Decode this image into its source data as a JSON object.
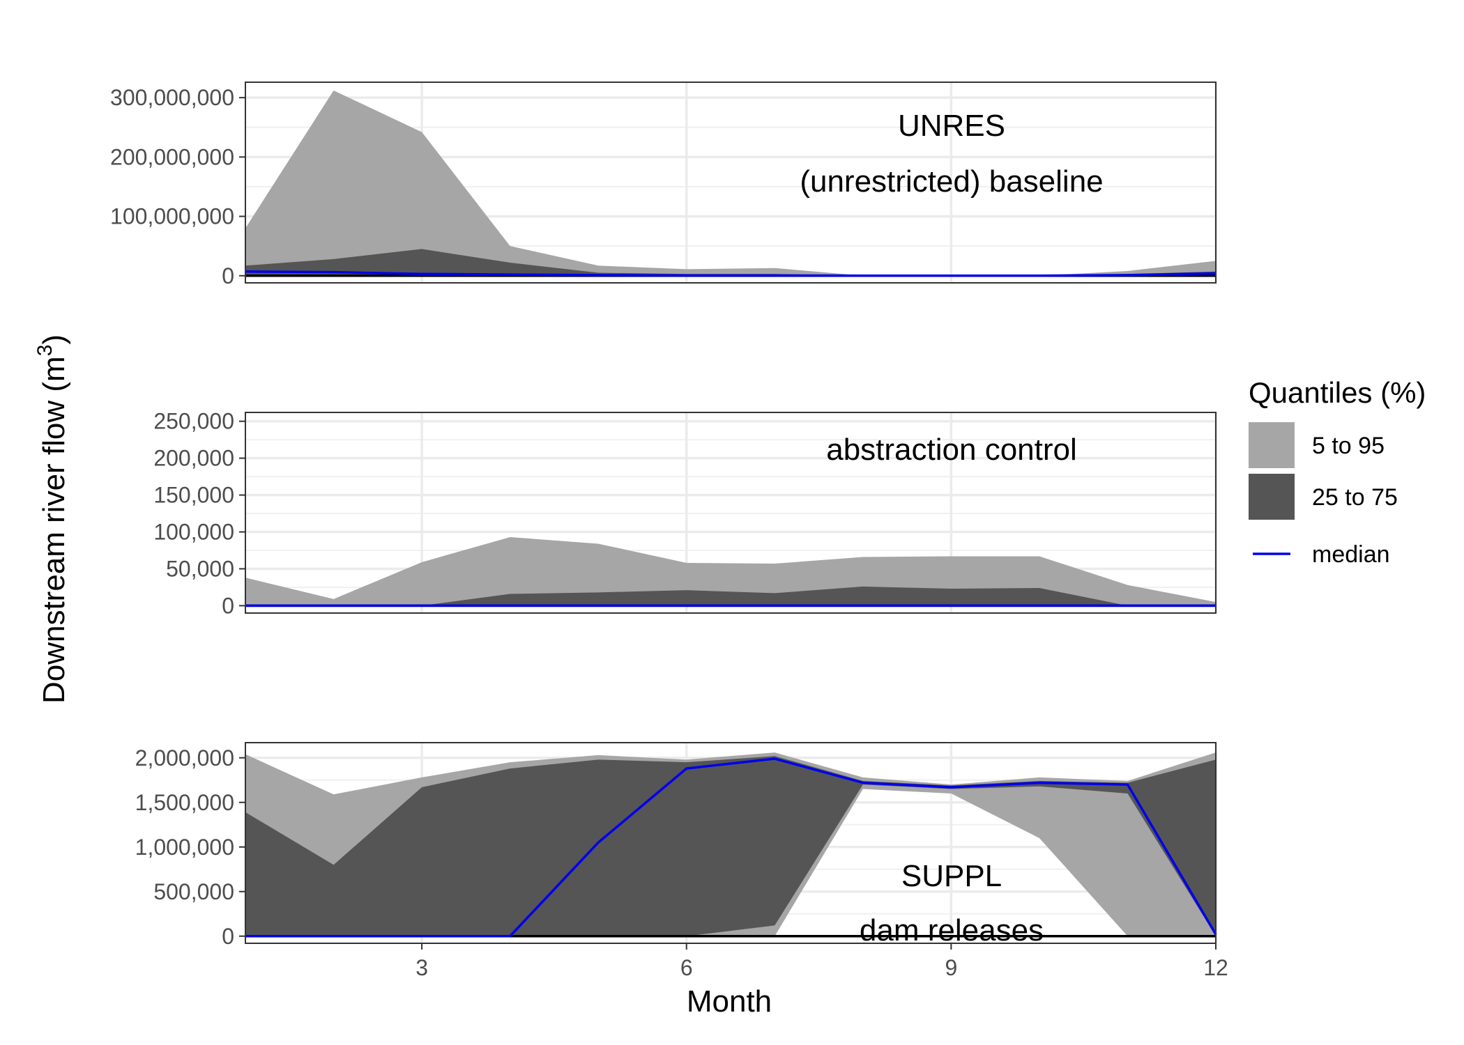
{
  "chart_data": {
    "type": "area",
    "xlabel": "Month",
    "ylabel": "Downstream river flow (m",
    "ylabel_sup": "3",
    "ylabel_close": ")",
    "xlim": [
      1,
      12
    ],
    "x_ticks": [
      3,
      6,
      9,
      12
    ],
    "x": [
      1,
      2,
      3,
      4,
      5,
      6,
      7,
      8,
      9,
      10,
      11,
      12
    ],
    "legend": {
      "title": "Quantiles (%)",
      "placement": "right",
      "items": [
        {
          "label": "5 to 95",
          "kind": "band",
          "color": "#a6a6a6"
        },
        {
          "label": "25 to 75",
          "kind": "band",
          "color": "#555555"
        },
        {
          "label": "median",
          "kind": "line",
          "color": "#0000ee"
        }
      ]
    },
    "colors": {
      "q5_95": "#a6a6a6",
      "q25_75": "#555555",
      "median": "#0000ee",
      "zero_line": "#000000"
    },
    "panels": [
      {
        "annotations": [
          "UNRES",
          "(unrestricted) baseline"
        ],
        "ylim": [
          -12000000,
          326000000
        ],
        "y_ticks": [
          0,
          100000000,
          200000000,
          300000000
        ],
        "y_tick_labels": [
          "0",
          "100,000,000",
          "200,000,000",
          "300,000,000"
        ],
        "q5": [
          0,
          0,
          0,
          0,
          0,
          0,
          0,
          0,
          0,
          0,
          0,
          0
        ],
        "q95": [
          80000000,
          312000000,
          242000000,
          50000000,
          17000000,
          11000000,
          13000000,
          0,
          0,
          0,
          8000000,
          25000000
        ],
        "q25": [
          0,
          0,
          0,
          0,
          0,
          0,
          0,
          0,
          0,
          0,
          0,
          0
        ],
        "q75": [
          17000000,
          28000000,
          45000000,
          22000000,
          5000000,
          3000000,
          3000000,
          0,
          0,
          0,
          3000000,
          7000000
        ],
        "median": [
          7000000,
          6000000,
          3000000,
          2000000,
          1000000,
          500000,
          500000,
          0,
          0,
          0,
          1000000,
          4000000
        ]
      },
      {
        "annotations": [
          "abstraction control"
        ],
        "ylim": [
          -10000,
          262000
        ],
        "y_ticks": [
          0,
          50000,
          100000,
          150000,
          200000,
          250000
        ],
        "y_tick_labels": [
          "0",
          "50,000",
          "100,000",
          "150,000",
          "200,000",
          "250,000"
        ],
        "q5": [
          0,
          0,
          0,
          0,
          0,
          0,
          0,
          0,
          0,
          0,
          0,
          0
        ],
        "q95": [
          38000,
          9000,
          59000,
          93000,
          84000,
          58000,
          57000,
          66000,
          67000,
          67000,
          28000,
          5000
        ],
        "q25": [
          0,
          0,
          0,
          0,
          0,
          0,
          0,
          0,
          0,
          0,
          0,
          0
        ],
        "q75": [
          0,
          0,
          0,
          16000,
          18000,
          21000,
          17000,
          26000,
          23000,
          24000,
          0,
          0
        ],
        "median": [
          0,
          0,
          0,
          0,
          0,
          0,
          0,
          0,
          0,
          0,
          0,
          0
        ]
      },
      {
        "annotations": [
          "SUPPL",
          "dam releases"
        ],
        "ylim": [
          -80000,
          2170000
        ],
        "y_ticks": [
          0,
          500000,
          1000000,
          1500000,
          2000000
        ],
        "y_tick_labels": [
          "0",
          "500,000",
          "1,000,000",
          "1,500,000",
          "2,000,000"
        ],
        "q5": [
          0,
          0,
          0,
          0,
          0,
          0,
          0,
          1650000,
          1600000,
          1100000,
          0,
          0
        ],
        "q95": [
          2040000,
          1590000,
          1780000,
          1950000,
          2030000,
          1980000,
          2060000,
          1780000,
          1700000,
          1780000,
          1740000,
          2060000
        ],
        "q25": [
          0,
          0,
          0,
          0,
          0,
          0,
          120000,
          1700000,
          1650000,
          1680000,
          1600000,
          0
        ],
        "q75": [
          1390000,
          800000,
          1670000,
          1880000,
          1980000,
          1950000,
          2020000,
          1740000,
          1690000,
          1740000,
          1720000,
          1980000
        ],
        "median": [
          0,
          0,
          0,
          0,
          1050000,
          1880000,
          1990000,
          1720000,
          1670000,
          1720000,
          1700000,
          20000
        ]
      }
    ]
  }
}
